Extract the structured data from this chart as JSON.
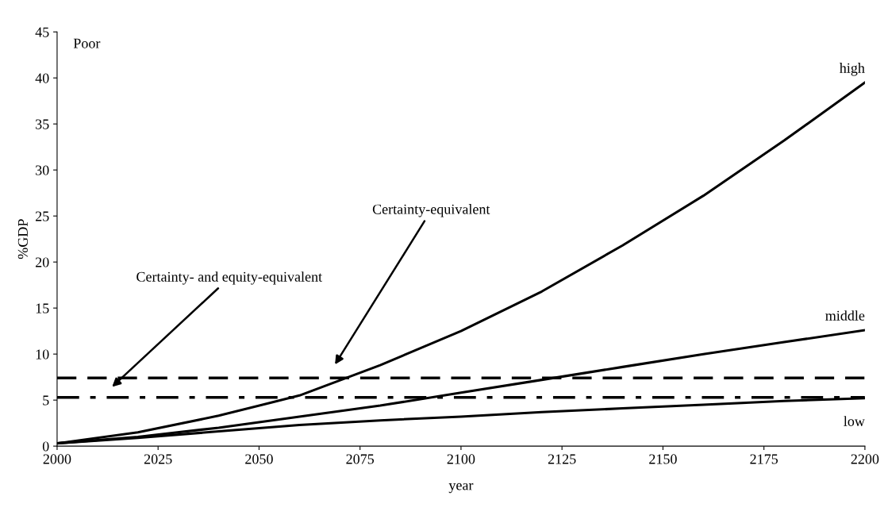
{
  "chart_data": {
    "type": "line",
    "xlabel": "year",
    "ylabel": "%GDP",
    "x": [
      2000,
      2020,
      2040,
      2060,
      2080,
      2100,
      2120,
      2140,
      2160,
      2180,
      2200
    ],
    "series": [
      {
        "name": "high",
        "color": "#000000",
        "values": [
          0.3,
          1.5,
          3.3,
          5.5,
          8.8,
          12.5,
          16.8,
          21.8,
          27.2,
          33.2,
          39.5
        ]
      },
      {
        "name": "middle",
        "color": "#000000",
        "values": [
          0.3,
          1.0,
          2.0,
          3.2,
          4.4,
          5.8,
          7.2,
          8.6,
          10.0,
          11.3,
          12.6
        ]
      },
      {
        "name": "low",
        "color": "#000000",
        "values": [
          0.3,
          0.9,
          1.6,
          2.3,
          2.8,
          3.2,
          3.7,
          4.1,
          4.5,
          4.9,
          5.2
        ]
      }
    ],
    "xlim": [
      2000,
      2200
    ],
    "xticks": [
      2000,
      2025,
      2050,
      2075,
      2100,
      2125,
      2150,
      2175,
      2200
    ],
    "ylim": [
      0,
      45
    ],
    "yticks": [
      0,
      5,
      10,
      15,
      20,
      25,
      30,
      35,
      40,
      45
    ],
    "grid": false,
    "legend": false,
    "marker": "none",
    "line_style": "solid",
    "ref_lines": [
      {
        "axis": "y",
        "value": 7.4,
        "color": "#000000",
        "line_style": "dashed"
      },
      {
        "axis": "y",
        "value": 5.3,
        "color": "#000000",
        "line_style": "dashdot"
      }
    ],
    "annotations": [
      "Poor",
      "Certainty-equivalent",
      "Certainty- and equity-equivalent"
    ]
  }
}
